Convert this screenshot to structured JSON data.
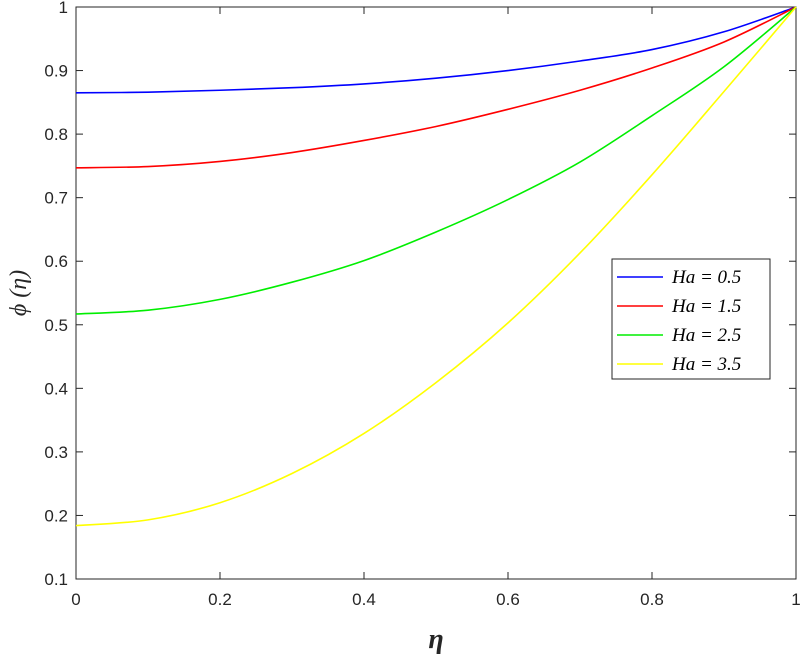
{
  "chart_data": {
    "type": "line",
    "title": "",
    "xlabel": "η",
    "ylabel": "ϕ (η)",
    "xlim": [
      0,
      1
    ],
    "ylim": [
      0.1,
      1
    ],
    "xticks": [
      0,
      0.2,
      0.4,
      0.6,
      0.8,
      1
    ],
    "xtick_labels": [
      "0",
      "0.2",
      "0.4",
      "0.6",
      "0.8",
      "1"
    ],
    "yticks": [
      0.1,
      0.2,
      0.3,
      0.4,
      0.5,
      0.6,
      0.7,
      0.8,
      0.9,
      1
    ],
    "ytick_labels": [
      "0.1",
      "0.2",
      "0.3",
      "0.4",
      "0.5",
      "0.6",
      "0.7",
      "0.8",
      "0.9",
      "1"
    ],
    "grid": false,
    "legend_position": "right",
    "x": [
      0,
      0.1,
      0.2,
      0.3,
      0.4,
      0.5,
      0.6,
      0.7,
      0.8,
      0.9,
      1
    ],
    "series": [
      {
        "name": "Ha = 0.5",
        "color": "#0000ff",
        "values": [
          0.865,
          0.866,
          0.869,
          0.873,
          0.879,
          0.888,
          0.9,
          0.915,
          0.933,
          0.961,
          1.0
        ]
      },
      {
        "name": "Ha = 1.5",
        "color": "#ff0000",
        "values": [
          0.747,
          0.749,
          0.757,
          0.771,
          0.79,
          0.812,
          0.839,
          0.869,
          0.904,
          0.945,
          1.0
        ]
      },
      {
        "name": "Ha = 2.5",
        "color": "#00ee00",
        "values": [
          0.517,
          0.523,
          0.54,
          0.567,
          0.601,
          0.646,
          0.697,
          0.756,
          0.829,
          0.906,
          1.0
        ]
      },
      {
        "name": "Ha = 3.5",
        "color": "#ffff00",
        "values": [
          0.184,
          0.193,
          0.22,
          0.266,
          0.329,
          0.409,
          0.503,
          0.613,
          0.736,
          0.867,
          1.0
        ]
      }
    ]
  }
}
